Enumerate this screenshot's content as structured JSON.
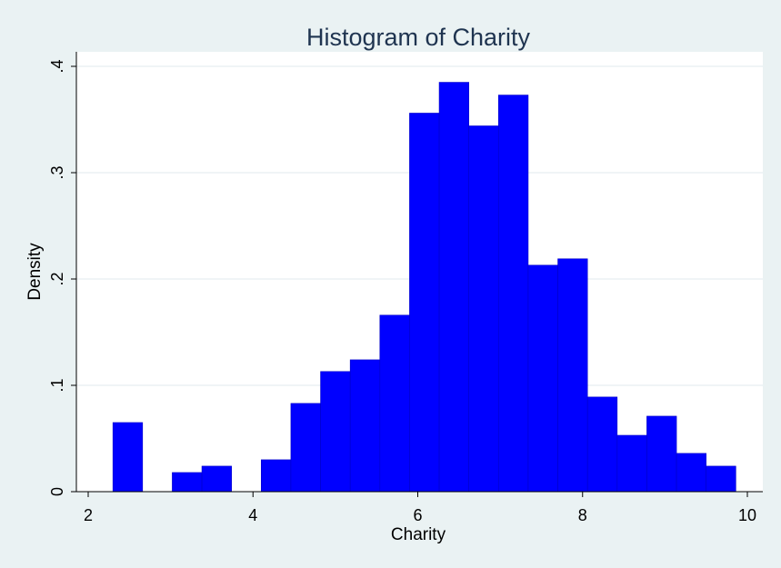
{
  "chart_data": {
    "type": "bar",
    "title": "Histogram of Charity",
    "xlabel": "Charity",
    "ylabel": "Density",
    "xlim": [
      2,
      10
    ],
    "ylim": [
      0,
      0.4
    ],
    "xticks": [
      2,
      4,
      6,
      8,
      10
    ],
    "xtick_labels": [
      "2",
      "4",
      "6",
      "8",
      "10"
    ],
    "yticks": [
      0,
      0.1,
      0.2,
      0.3,
      0.4
    ],
    "ytick_labels": [
      "0",
      ".1",
      ".2",
      ".3",
      ".4"
    ],
    "grid": true,
    "bar_color": "#0000ff",
    "plot_background": "#ffffff",
    "page_background": "#eaf2f3",
    "bins": [
      {
        "x0": 2.3,
        "x1": 2.66,
        "y": 0.065
      },
      {
        "x0": 2.66,
        "x1": 3.02,
        "y": 0.0
      },
      {
        "x0": 3.02,
        "x1": 3.38,
        "y": 0.018
      },
      {
        "x0": 3.38,
        "x1": 3.74,
        "y": 0.024
      },
      {
        "x0": 3.74,
        "x1": 4.1,
        "y": 0.0
      },
      {
        "x0": 4.1,
        "x1": 4.46,
        "y": 0.03
      },
      {
        "x0": 4.46,
        "x1": 4.82,
        "y": 0.083
      },
      {
        "x0": 4.82,
        "x1": 5.18,
        "y": 0.113
      },
      {
        "x0": 5.18,
        "x1": 5.54,
        "y": 0.124
      },
      {
        "x0": 5.54,
        "x1": 5.9,
        "y": 0.166
      },
      {
        "x0": 5.9,
        "x1": 6.26,
        "y": 0.356
      },
      {
        "x0": 6.26,
        "x1": 6.62,
        "y": 0.385
      },
      {
        "x0": 6.62,
        "x1": 6.98,
        "y": 0.344
      },
      {
        "x0": 6.98,
        "x1": 7.34,
        "y": 0.373
      },
      {
        "x0": 7.34,
        "x1": 7.7,
        "y": 0.213
      },
      {
        "x0": 7.7,
        "x1": 8.06,
        "y": 0.219
      },
      {
        "x0": 8.06,
        "x1": 8.42,
        "y": 0.089
      },
      {
        "x0": 8.42,
        "x1": 8.78,
        "y": 0.053
      },
      {
        "x0": 8.78,
        "x1": 9.14,
        "y": 0.071
      },
      {
        "x0": 9.14,
        "x1": 9.5,
        "y": 0.036
      },
      {
        "x0": 9.5,
        "x1": 9.86,
        "y": 0.024
      }
    ]
  }
}
